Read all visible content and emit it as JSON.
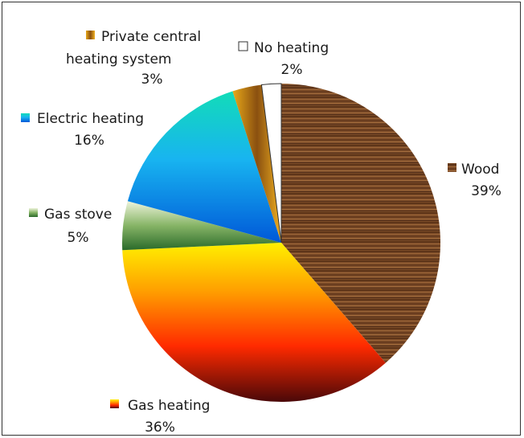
{
  "chart_data": {
    "type": "pie",
    "title": "",
    "start": "12 o'clock",
    "direction": "clockwise",
    "legend_placement": "labels beside slices",
    "slices": [
      {
        "label": "Wood",
        "value": 39,
        "value_label": "39%",
        "color": "#7a4a26",
        "texture": "wood-grain"
      },
      {
        "label": "Gas heating",
        "value": 36,
        "value_label": "36%",
        "color": "#f07a10",
        "gradient": [
          "#ffe600",
          "#ff8c00",
          "#ff2a00",
          "#5a0a0a"
        ]
      },
      {
        "label": "Gas stove",
        "value": 5,
        "value_label": "5%",
        "color": "#4a8a3a",
        "gradient": [
          "#e4efd0",
          "#7fb060",
          "#2e6e2e"
        ]
      },
      {
        "label": "Electric heating",
        "value": 16,
        "value_label": "16%",
        "color": "#1aa0e0",
        "gradient": [
          "#10d8c0",
          "#18b8f0",
          "#0060d8"
        ]
      },
      {
        "label": "Private central heating system",
        "value_label": "3%",
        "value": 3,
        "color": "#d08a10",
        "gradient": [
          "#f0b020",
          "#a06010",
          "#e8a018"
        ]
      },
      {
        "label": "No heating",
        "value": 2,
        "value_label": "2%",
        "color": "#ffffff"
      }
    ]
  }
}
